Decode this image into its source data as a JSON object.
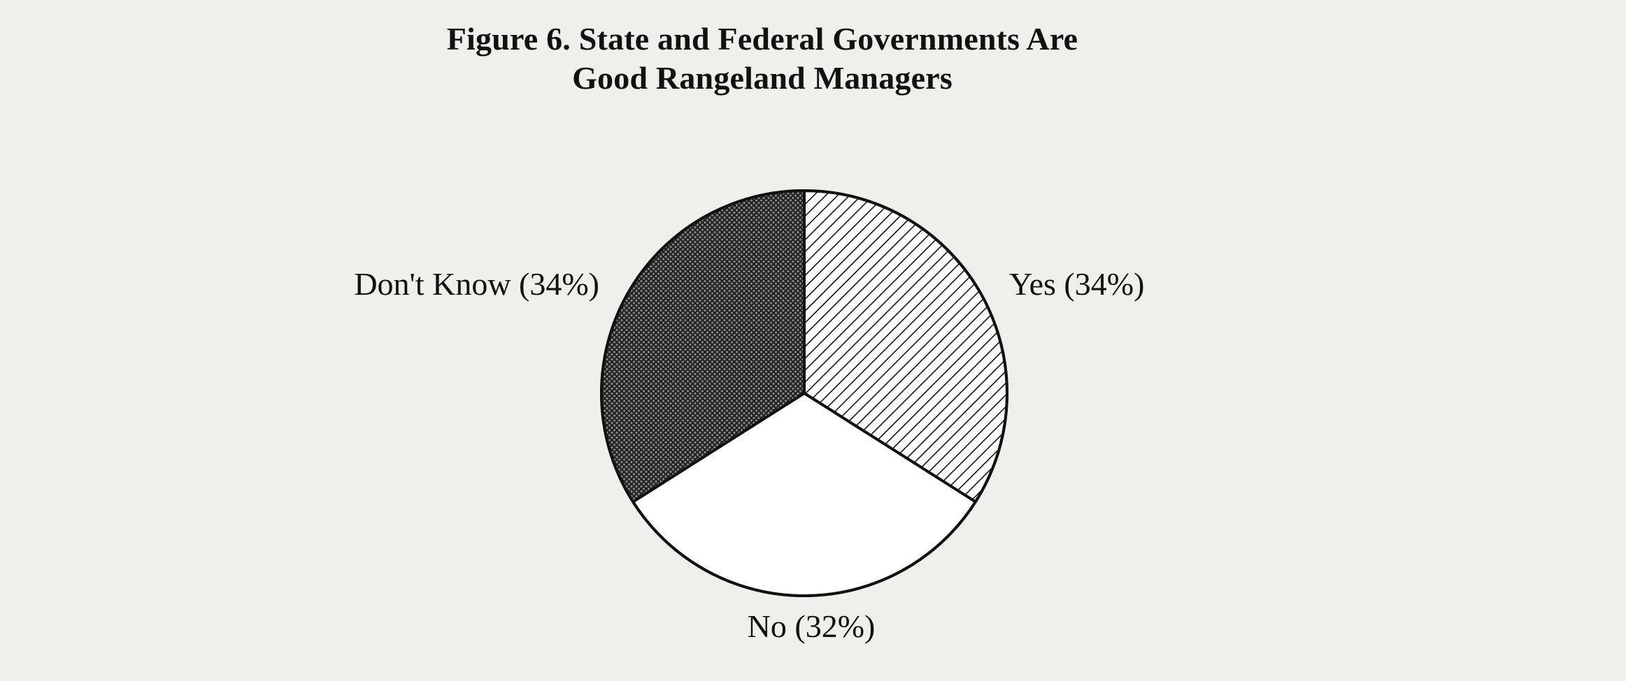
{
  "chart_data": {
    "type": "pie",
    "title": [
      "Figure 6. State and Federal Governments Are",
      "Good Rangeland Managers"
    ],
    "slices": [
      {
        "label": "Yes (34%)",
        "value": 34,
        "pattern": "diagonal-hatch",
        "color": "#ffffff"
      },
      {
        "label": "No (32%)",
        "value": 32,
        "pattern": "none",
        "color": "#ffffff"
      },
      {
        "label": "Don't Know (34%)",
        "value": 34,
        "pattern": "crosshatch",
        "color": "#555555"
      }
    ],
    "start_angle_deg": 0,
    "direction": "clockwise",
    "legend": "none"
  }
}
